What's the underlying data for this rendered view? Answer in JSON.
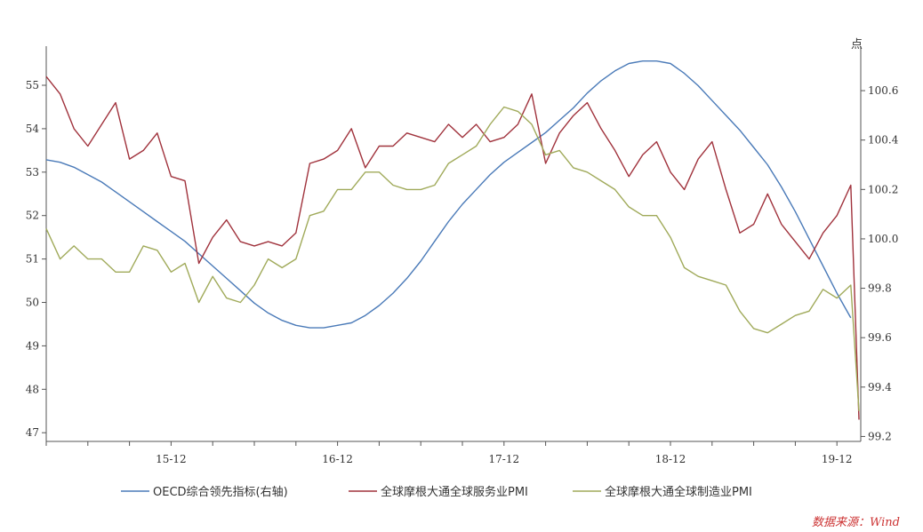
{
  "chart_data": {
    "type": "line",
    "left_axis": {
      "range": [
        46.8,
        55.9
      ],
      "ticks": [
        47,
        48,
        49,
        50,
        51,
        52,
        53,
        54,
        55
      ]
    },
    "right_axis": {
      "unit": "点",
      "range": [
        99.18,
        100.78
      ],
      "ticks": [
        99.2,
        99.4,
        99.6,
        99.8,
        100.0,
        100.2,
        100.4,
        100.6
      ]
    },
    "x_tick_labels": [
      {
        "label": "15-12",
        "index": 9
      },
      {
        "label": "16-12",
        "index": 21
      },
      {
        "label": "17-12",
        "index": 33
      },
      {
        "label": "18-12",
        "index": 45
      },
      {
        "label": "19-12",
        "index": 57
      }
    ],
    "x_count": 59,
    "grid": false,
    "legend_position": "bottom",
    "series": [
      {
        "name": "OECD综合领先指标(右轴)",
        "axis": "right",
        "color": "#4a7ab8",
        "values": [
          100.32,
          100.31,
          100.29,
          100.26,
          100.23,
          100.19,
          100.15,
          100.11,
          100.07,
          100.03,
          99.99,
          99.94,
          99.89,
          99.84,
          99.79,
          99.74,
          99.7,
          99.67,
          99.65,
          99.64,
          99.64,
          99.65,
          99.66,
          99.69,
          99.73,
          99.78,
          99.84,
          99.91,
          99.99,
          100.07,
          100.14,
          100.2,
          100.26,
          100.31,
          100.35,
          100.39,
          100.43,
          100.48,
          100.53,
          100.59,
          100.64,
          100.68,
          100.71,
          100.72,
          100.72,
          100.71,
          100.67,
          100.62,
          100.56,
          100.5,
          100.44,
          100.37,
          100.3,
          100.21,
          100.11,
          100.0,
          99.89,
          99.78,
          99.68
        ]
      },
      {
        "name": "全球摩根大通全球服务业PMI",
        "axis": "left",
        "color": "#a0323c",
        "values": [
          55.2,
          54.8,
          54.0,
          53.6,
          54.1,
          54.6,
          53.3,
          53.5,
          53.9,
          52.9,
          52.8,
          50.9,
          51.5,
          51.9,
          51.4,
          51.3,
          51.4,
          51.3,
          51.6,
          53.2,
          53.3,
          53.5,
          54.0,
          53.1,
          53.6,
          53.6,
          53.9,
          53.8,
          53.7,
          54.1,
          53.8,
          54.1,
          53.7,
          53.8,
          54.1,
          54.8,
          53.2,
          53.9,
          54.3,
          54.6,
          54.0,
          53.5,
          52.9,
          53.4,
          53.7,
          53.0,
          52.6,
          53.3,
          53.7,
          52.6,
          51.6,
          51.8,
          52.5,
          51.8,
          51.4,
          51.0,
          51.6,
          52.0,
          52.7
        ]
      },
      {
        "name": "全球摩根大通全球制造业PMI",
        "axis": "left",
        "color": "#a0aa5a",
        "values": [
          51.7,
          51.0,
          51.3,
          51.0,
          51.0,
          50.7,
          50.7,
          51.3,
          51.2,
          50.7,
          50.9,
          50.0,
          50.6,
          50.1,
          50.0,
          50.4,
          51.0,
          50.8,
          51.0,
          52.0,
          52.1,
          52.6,
          52.6,
          53.0,
          53.0,
          52.7,
          52.6,
          52.6,
          52.7,
          53.2,
          53.4,
          53.6,
          54.1,
          54.5,
          54.4,
          54.1,
          53.4,
          53.5,
          53.1,
          53.0,
          52.8,
          52.6,
          52.2,
          52.0,
          52.0,
          51.5,
          50.8,
          50.6,
          50.5,
          50.4,
          49.8,
          49.4,
          49.3,
          49.5,
          49.7,
          49.8,
          50.3,
          50.1,
          50.4
        ]
      }
    ],
    "final_drop": {
      "services": 47.3,
      "manufacturing": 47.5,
      "oecd": 99.3
    },
    "source": "数据来源：Wind"
  }
}
